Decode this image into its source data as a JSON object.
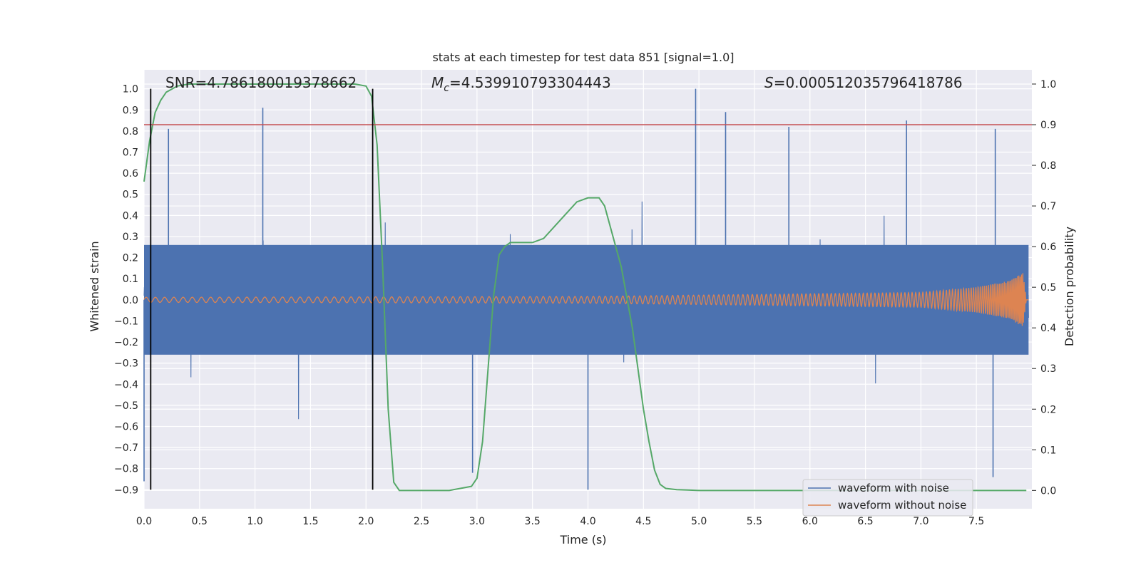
{
  "chart_data": {
    "type": "line",
    "title": "stats at each timestep for test data 851 [signal=1.0]",
    "xlabel": "Time (s)",
    "ylabel_left": "Whitened strain",
    "ylabel_right": "Detection probability",
    "xlim": [
      0.0,
      8.0
    ],
    "ylim_left": [
      -0.99,
      1.09
    ],
    "ylim_right": [
      -0.045,
      1.035
    ],
    "xticks": [
      "0.0",
      "0.5",
      "1.0",
      "1.5",
      "2.0",
      "2.5",
      "3.0",
      "3.5",
      "4.0",
      "4.5",
      "5.0",
      "5.5",
      "6.0",
      "6.5",
      "7.0",
      "7.5"
    ],
    "yticks_left": [
      "−0.9",
      "−0.8",
      "−0.7",
      "−0.6",
      "−0.5",
      "−0.4",
      "−0.3",
      "−0.2",
      "−0.1",
      "0.0",
      "0.1",
      "0.2",
      "0.3",
      "0.4",
      "0.5",
      "0.6",
      "0.7",
      "0.8",
      "0.9",
      "1.0"
    ],
    "yticks_right": [
      "0.0",
      "0.1",
      "0.2",
      "0.3",
      "0.4",
      "0.5",
      "0.6",
      "0.7",
      "0.8",
      "0.9",
      "1.0"
    ],
    "annotations": {
      "snr": "SNR=4.786180019378662",
      "mc_symbol": "M",
      "mc_sub": "c",
      "mc_value": "=4.539910793304443",
      "s_symbol": "S",
      "s_value": "=0.000512035796418786"
    },
    "threshold": {
      "value": 0.9,
      "axis": "right",
      "color": "#c44e52"
    },
    "vlines": [
      0.06,
      2.06
    ],
    "legend": {
      "position": "lower-right",
      "entries": [
        "waveform with noise",
        "waveform without noise"
      ]
    },
    "series": [
      {
        "name": "waveform with noise",
        "color": "#4c72b0",
        "axis": "left",
        "style": "dense noise trace, core amplitude about ±0.3, spikes to about 1.0 and −0.9",
        "notable_peaks": [
          {
            "x": 1.07,
            "y": 0.91
          },
          {
            "x": 4.97,
            "y": 1.0
          },
          {
            "x": 5.24,
            "y": 0.89
          },
          {
            "x": 5.81,
            "y": 0.82
          },
          {
            "x": 6.87,
            "y": 0.85
          },
          {
            "x": 0.22,
            "y": 0.81
          },
          {
            "x": 7.67,
            "y": 0.81
          },
          {
            "x": 4.0,
            "y": -0.9
          },
          {
            "x": 2.96,
            "y": -0.82
          },
          {
            "x": 0.0,
            "y": -0.86
          },
          {
            "x": 7.65,
            "y": -0.84
          }
        ]
      },
      {
        "name": "waveform without noise",
        "color": "#dd8452",
        "axis": "left",
        "style": "chirp",
        "envelope": {
          "x": [
            0.0,
            4.0,
            7.0,
            7.5,
            7.8,
            7.92,
            7.95
          ],
          "y": [
            0.012,
            0.016,
            0.035,
            0.06,
            0.09,
            0.13,
            0.0
          ]
        }
      },
      {
        "name": "detection probability",
        "color": "#55a868",
        "axis": "right",
        "x": [
          0.0,
          0.05,
          0.1,
          0.15,
          0.2,
          0.3,
          0.4,
          0.5,
          1.0,
          1.5,
          1.9,
          2.0,
          2.05,
          2.1,
          2.15,
          2.2,
          2.25,
          2.3,
          2.5,
          2.75,
          2.85,
          2.95,
          3.0,
          3.05,
          3.1,
          3.15,
          3.2,
          3.25,
          3.3,
          3.4,
          3.5,
          3.6,
          3.7,
          3.8,
          3.9,
          4.0,
          4.1,
          4.15,
          4.2,
          4.3,
          4.4,
          4.5,
          4.55,
          4.6,
          4.65,
          4.7,
          4.8,
          4.9,
          5.0,
          6.0,
          7.0,
          7.5,
          7.95
        ],
        "y": [
          0.76,
          0.86,
          0.93,
          0.96,
          0.98,
          0.995,
          1.0,
          1.0,
          1.0,
          1.0,
          1.0,
          0.995,
          0.97,
          0.85,
          0.55,
          0.2,
          0.02,
          0.0,
          0.0,
          0.0,
          0.005,
          0.01,
          0.03,
          0.12,
          0.3,
          0.48,
          0.58,
          0.6,
          0.61,
          0.61,
          0.61,
          0.62,
          0.65,
          0.68,
          0.71,
          0.72,
          0.72,
          0.7,
          0.65,
          0.55,
          0.4,
          0.2,
          0.12,
          0.05,
          0.015,
          0.005,
          0.002,
          0.001,
          0.0,
          0.0,
          0.0,
          0.0,
          0.0
        ]
      }
    ]
  }
}
